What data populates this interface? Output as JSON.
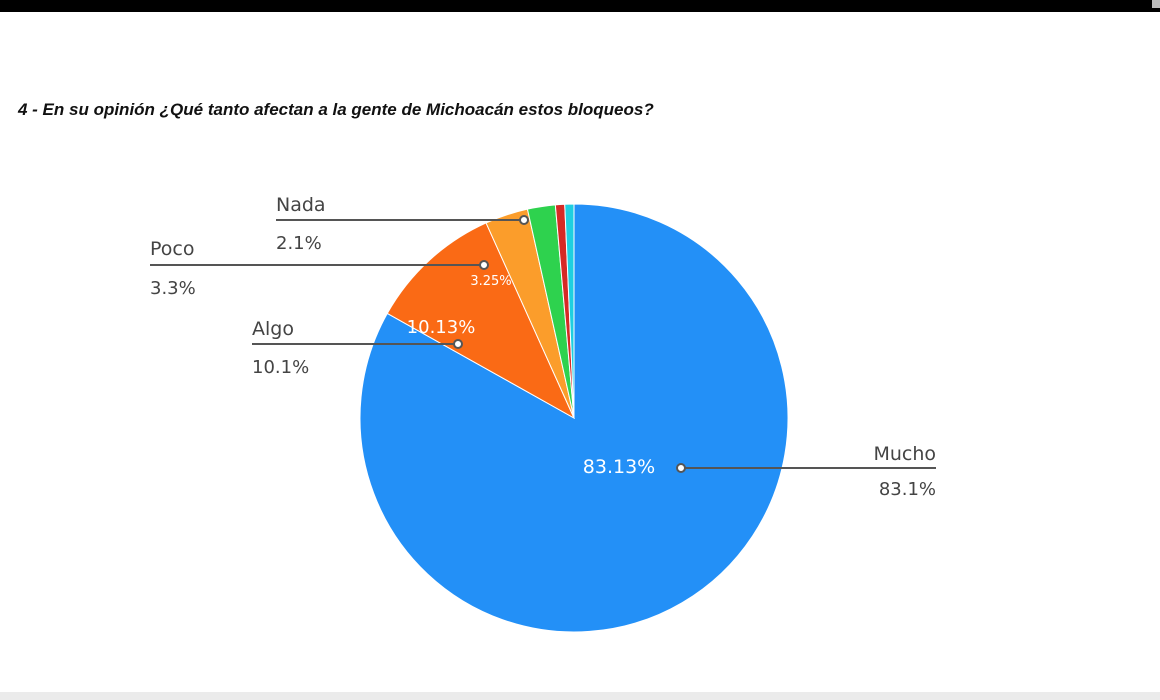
{
  "title": "4 - En su opinión ¿Qué tanto afectan a la gente de Michoacán estos bloqueos?",
  "chart_data": {
    "type": "pie",
    "title": "4 - En su opinión ¿Qué tanto afectan a la gente de Michoacán estos bloqueos?",
    "start_angle": "12 o'clock",
    "direction": "clockwise",
    "slices": [
      {
        "name": "Mucho",
        "value": 83.13,
        "color": "#2390f7",
        "inside_label": "83.13%",
        "callout_label": "Mucho",
        "callout_value": "83.1%"
      },
      {
        "name": "Algo",
        "value": 10.13,
        "color": "#fa6a15",
        "inside_label": "10.13%",
        "callout_label": "Algo",
        "callout_value": "10.1%"
      },
      {
        "name": "Poco",
        "value": 3.25,
        "color": "#fb9d2b",
        "inside_label": "3.25%",
        "callout_label": "Poco",
        "callout_value": "3.3%"
      },
      {
        "name": "Nada",
        "value": 2.1,
        "color": "#2ed24e",
        "inside_label": "",
        "callout_label": "Nada",
        "callout_value": "2.1%"
      },
      {
        "name": "",
        "value": 0.7,
        "color": "#d62a25",
        "inside_label": "",
        "callout_label": "",
        "callout_value": ""
      },
      {
        "name": "",
        "value": 0.69,
        "color": "#1fcfe0",
        "inside_label": "",
        "callout_label": "",
        "callout_value": ""
      }
    ],
    "legend": "callouts"
  }
}
